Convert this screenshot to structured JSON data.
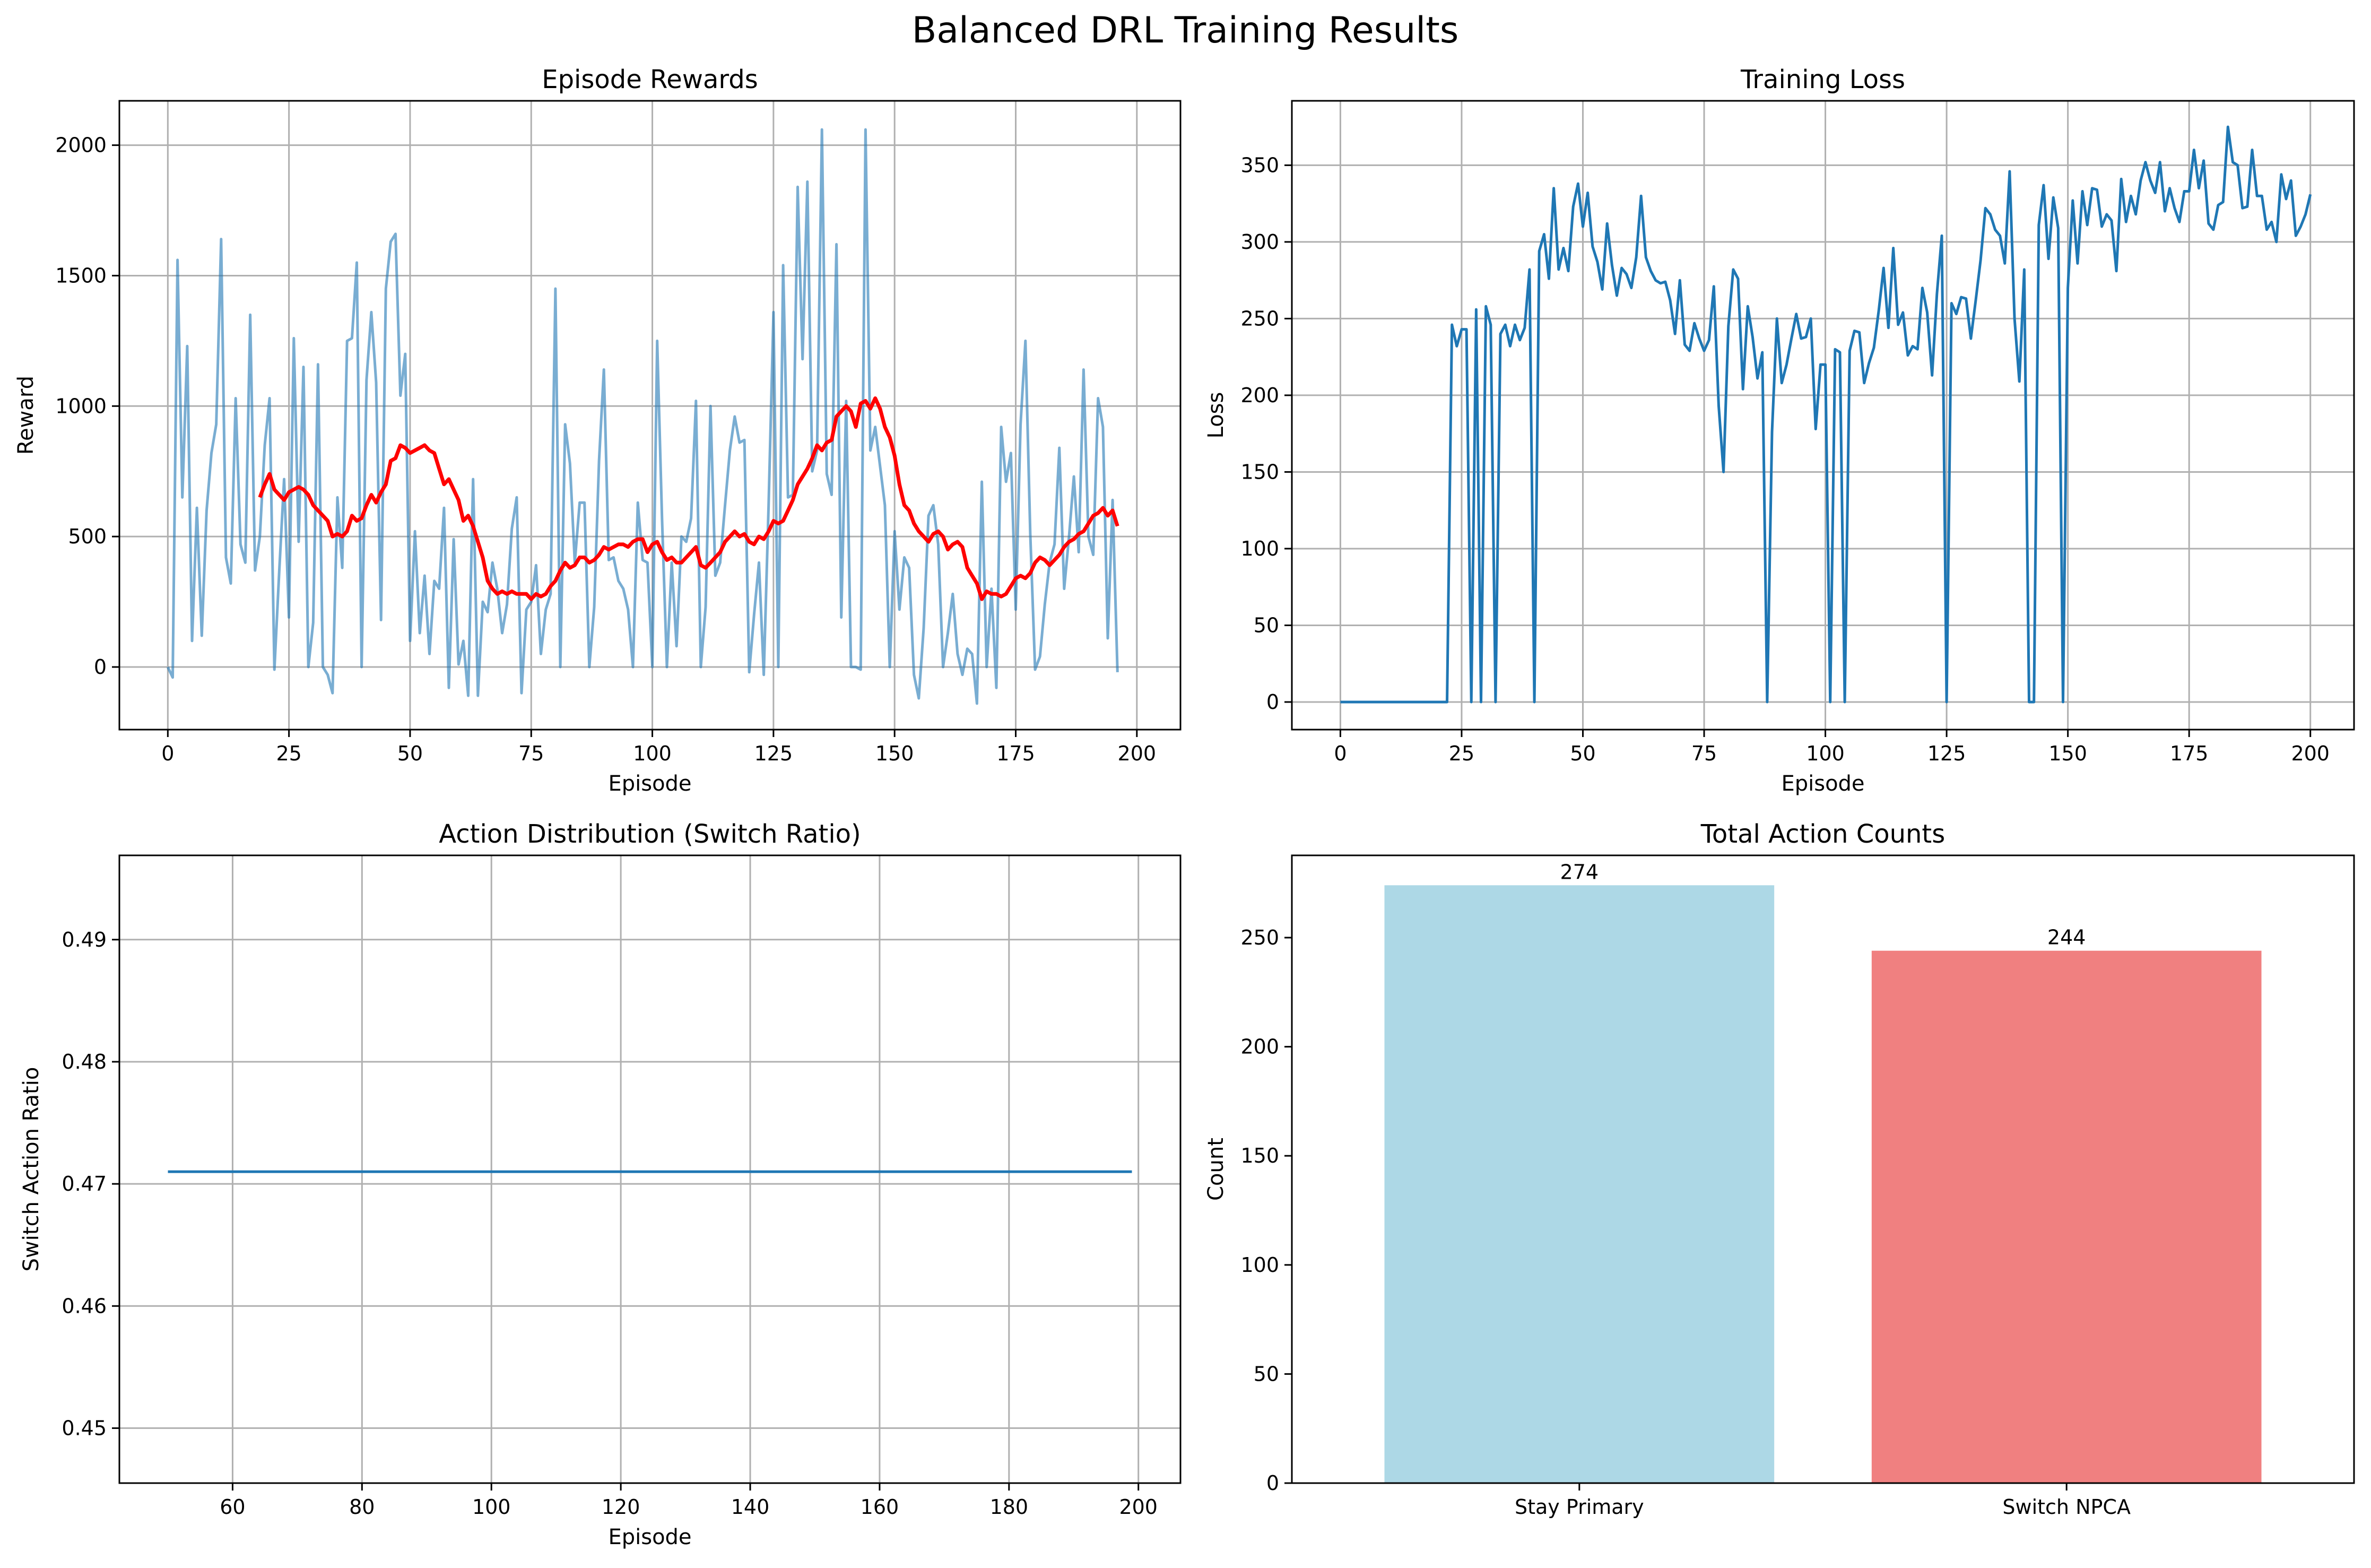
{
  "figure": {
    "title": "Balanced DRL Training Results"
  },
  "colors": {
    "episode_rewards_raw": "#1f77b4",
    "episode_rewards_ma": "#ff0000",
    "loss": "#1f77b4",
    "switch_ratio": "#1f77b4",
    "bar_stay": "#add8e6",
    "bar_switch": "#f08080"
  },
  "chart_data": [
    {
      "type": "line",
      "title": "Episode Rewards",
      "xlabel": "Episode",
      "ylabel": "Reward",
      "xlim": [
        -10,
        209
      ],
      "ylim": [
        -240,
        2170
      ],
      "xticks": [
        0,
        25,
        50,
        75,
        100,
        125,
        150,
        175,
        200
      ],
      "yticks": [
        0,
        500,
        1000,
        1500,
        2000
      ],
      "grid": true,
      "series": [
        {
          "x0": 0,
          "values": [
            0,
            -40,
            1560,
            650,
            1230,
            100,
            610,
            120,
            600,
            820,
            930,
            1640,
            420,
            320,
            1030,
            470,
            400,
            1350,
            370,
            500,
            850,
            1030,
            -10,
            370,
            720,
            190,
            1260,
            480,
            1150,
            0,
            170,
            1160,
            0,
            -30,
            -100,
            650,
            380,
            1250,
            1260,
            1550,
            0,
            1100,
            1360,
            1090,
            180,
            1450,
            1630,
            1660,
            1040,
            1200,
            100,
            520,
            130,
            350,
            50,
            330,
            300,
            610,
            -80,
            490,
            10,
            100,
            -110,
            720,
            -110,
            250,
            210,
            400,
            300,
            130,
            240,
            530,
            650,
            -100,
            220,
            250,
            390,
            50,
            220,
            280,
            1450,
            0,
            930,
            780,
            400,
            630,
            630,
            0,
            230,
            790,
            1140,
            410,
            420,
            330,
            300,
            220,
            0,
            630,
            410,
            400,
            0,
            1250,
            570,
            0,
            400,
            80,
            500,
            480,
            570,
            1020,
            0,
            230,
            1000,
            350,
            400,
            620,
            830,
            960,
            860,
            870,
            -20,
            200,
            400,
            -30,
            620,
            1360,
            0,
            1540,
            650,
            660,
            1840,
            1180,
            1860,
            750,
            830,
            2060,
            740,
            660,
            1620,
            190,
            1020,
            0,
            0,
            -10,
            2060,
            830,
            920,
            770,
            620,
            0,
            520,
            220,
            420,
            380,
            -30,
            -120,
            150,
            580,
            620,
            470,
            0,
            130,
            280,
            50,
            -30,
            70,
            50,
            -140,
            710,
            0,
            300,
            -80,
            920,
            710,
            820,
            220,
            930,
            1250,
            510,
            -10,
            40,
            240,
            400,
            470,
            840,
            300,
            500,
            730,
            440,
            1140,
            500,
            430,
            1030,
            920,
            110,
            640,
            -20
          ]
        },
        {
          "x0": 19,
          "values": [
            650,
            700,
            740,
            680,
            660,
            640,
            670,
            680,
            690,
            680,
            660,
            620,
            600,
            580,
            560,
            500,
            510,
            500,
            520,
            580,
            560,
            570,
            620,
            660,
            630,
            670,
            700,
            790,
            800,
            850,
            840,
            820,
            830,
            840,
            850,
            830,
            820,
            760,
            700,
            720,
            680,
            640,
            560,
            580,
            540,
            480,
            420,
            330,
            300,
            280,
            290,
            280,
            290,
            280,
            280,
            280,
            260,
            280,
            270,
            280,
            310,
            330,
            370,
            400,
            380,
            390,
            420,
            420,
            400,
            410,
            430,
            460,
            450,
            460,
            470,
            470,
            460,
            480,
            490,
            490,
            440,
            470,
            480,
            440,
            410,
            420,
            400,
            400,
            420,
            440,
            460,
            390,
            380,
            400,
            420,
            440,
            480,
            500,
            520,
            500,
            510,
            480,
            470,
            500,
            490,
            520,
            560,
            550,
            560,
            600,
            640,
            700,
            730,
            760,
            800,
            850,
            830,
            860,
            870,
            960,
            980,
            1000,
            980,
            920,
            1010,
            1020,
            990,
            1030,
            990,
            920,
            880,
            810,
            700,
            620,
            600,
            550,
            520,
            500,
            480,
            510,
            520,
            500,
            450,
            470,
            480,
            460,
            380,
            350,
            320,
            260,
            290,
            280,
            280,
            270,
            280,
            310,
            340,
            350,
            340,
            360,
            400,
            420,
            410,
            390,
            410,
            430,
            460,
            480,
            490,
            510,
            520,
            550,
            580,
            590,
            610,
            580,
            600,
            540
          ]
        }
      ]
    },
    {
      "type": "line",
      "title": "Training Loss",
      "xlabel": "Episode",
      "ylabel": "Loss",
      "xlim": [
        -10,
        209
      ],
      "ylim": [
        -18,
        392
      ],
      "xticks": [
        0,
        25,
        50,
        75,
        100,
        125,
        150,
        175,
        200
      ],
      "yticks": [
        0,
        50,
        100,
        150,
        200,
        250,
        300,
        350
      ],
      "grid": true,
      "series": [
        {
          "x0": 0,
          "values": [
            0,
            0,
            0,
            0,
            0,
            0,
            0,
            0,
            0,
            0,
            0,
            0,
            0,
            0,
            0,
            0,
            0,
            0,
            0,
            0,
            0,
            0,
            0,
            246,
            232,
            243,
            243,
            0,
            256,
            0,
            258,
            246,
            0,
            240,
            246,
            232,
            246,
            236,
            244,
            282,
            0,
            294,
            305,
            276,
            335,
            282,
            296,
            281,
            323,
            338,
            310,
            332,
            297,
            287,
            269,
            312,
            285,
            265,
            283,
            279,
            270,
            290,
            330,
            290,
            281,
            275,
            273,
            274,
            262,
            240,
            275,
            233,
            229,
            247,
            237,
            229,
            236,
            271,
            193,
            150,
            245,
            282,
            276,
            204,
            258,
            238,
            211,
            228,
            0,
            176,
            250,
            208,
            220,
            237,
            253,
            237,
            238,
            250,
            178,
            220,
            220,
            0,
            230,
            228,
            0,
            229,
            242,
            241,
            208,
            221,
            231,
            255,
            283,
            244,
            296,
            246,
            254,
            226,
            232,
            230,
            270,
            254,
            213,
            266,
            304,
            0,
            260,
            253,
            264,
            263,
            237,
            262,
            288,
            322,
            318,
            308,
            304,
            286,
            346,
            250,
            209,
            282,
            0,
            0,
            311,
            337,
            289,
            329,
            309,
            0,
            270,
            327,
            286,
            333,
            311,
            335,
            334,
            310,
            318,
            314,
            281,
            341,
            313,
            330,
            318,
            340,
            352,
            340,
            332,
            352,
            320,
            335,
            322,
            313,
            333,
            333,
            360,
            335,
            353,
            312,
            308,
            324,
            326,
            375,
            352,
            350,
            322,
            323,
            360,
            330,
            330,
            308,
            313,
            300,
            344,
            328,
            340,
            304,
            310,
            318,
            331
          ]
        }
      ]
    },
    {
      "type": "line",
      "title": "Action Distribution (Switch Ratio)",
      "xlabel": "Episode",
      "ylabel": "Switch Action Ratio",
      "xlim": [
        42.5,
        206.5
      ],
      "ylim": [
        0.4455,
        0.4969
      ],
      "xticks": [
        60,
        80,
        100,
        120,
        140,
        160,
        180,
        200
      ],
      "yticks": [
        0.45,
        0.46,
        0.47,
        0.48,
        0.49
      ],
      "grid": true,
      "series": [
        {
          "x": [
            50,
            199
          ],
          "values": [
            0.471,
            0.471
          ]
        }
      ]
    },
    {
      "type": "bar",
      "title": "Total Action Counts",
      "xlabel": "",
      "ylabel": "Count",
      "ylim": [
        0,
        287.7
      ],
      "yticks": [
        0,
        50,
        100,
        150,
        200,
        250
      ],
      "categories": [
        "Stay Primary",
        "Switch NPCA"
      ],
      "values": [
        274,
        244
      ],
      "data_labels": [
        "274",
        "244"
      ],
      "grid": false
    }
  ]
}
